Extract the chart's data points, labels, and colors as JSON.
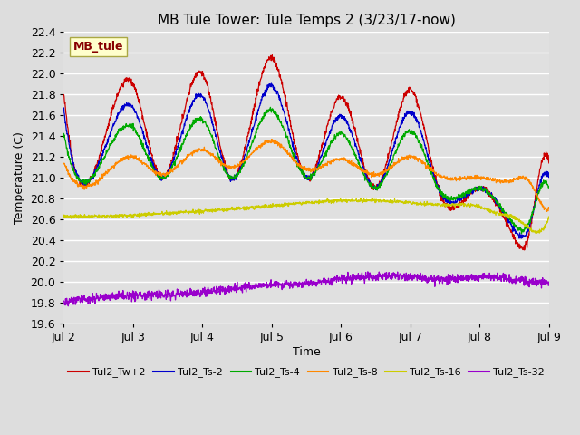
{
  "title": "MB Tule Tower: Tule Temps 2 (3/23/17-now)",
  "xlabel": "Time",
  "ylabel": "Temperature (C)",
  "xlim": [
    0,
    7
  ],
  "ylim": [
    19.6,
    22.4
  ],
  "yticks": [
    19.6,
    19.8,
    20.0,
    20.2,
    20.4,
    20.6,
    20.8,
    21.0,
    21.2,
    21.4,
    21.6,
    21.8,
    22.0,
    22.2,
    22.4
  ],
  "xtick_labels": [
    "Jul 2",
    "Jul 3",
    "Jul 4",
    "Jul 5",
    "Jul 6",
    "Jul 7",
    "Jul 8",
    "Jul 9"
  ],
  "xtick_positions": [
    0,
    1,
    2,
    3,
    4,
    5,
    6,
    7
  ],
  "background_color": "#dddddd",
  "plot_bg_color": "#e0e0e0",
  "grid_color": "#ffffff",
  "series_colors": [
    "#cc0000",
    "#0000cc",
    "#00aa00",
    "#ff8800",
    "#cccc00",
    "#9900cc"
  ],
  "series_labels": [
    "Tul2_Tw+2",
    "Tul2_Ts-2",
    "Tul2_Ts-4",
    "Tul2_Ts-8",
    "Tul2_Ts-16",
    "Tul2_Ts-32"
  ],
  "watermark_text": "MB_tule",
  "watermark_bg": "#ffffcc",
  "watermark_fg": "#880000"
}
